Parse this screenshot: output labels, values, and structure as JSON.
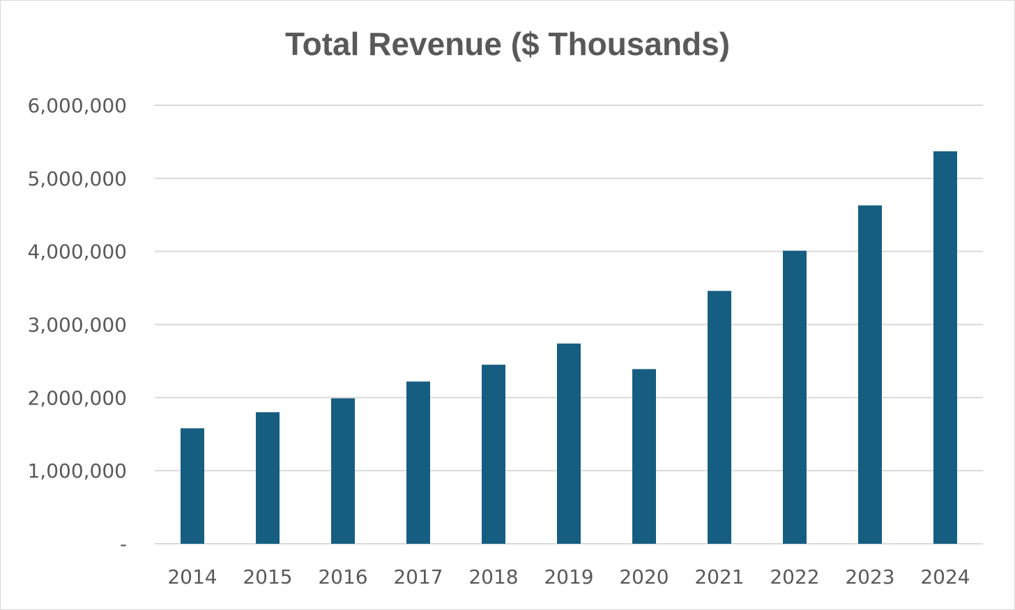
{
  "chart_data": {
    "type": "bar",
    "title": "Total Revenue ($ Thousands)",
    "xlabel": "",
    "ylabel": "",
    "categories": [
      "2014",
      "2015",
      "2016",
      "2017",
      "2018",
      "2019",
      "2020",
      "2021",
      "2022",
      "2023",
      "2024"
    ],
    "values": [
      1580000,
      1800000,
      1990000,
      2220000,
      2450000,
      2740000,
      2390000,
      3460000,
      4010000,
      4630000,
      5370000
    ],
    "ylim": [
      0,
      6000000
    ],
    "y_ticks": [
      {
        "value": 0,
        "label": "-"
      },
      {
        "value": 1000000,
        "label": "1,000,000"
      },
      {
        "value": 2000000,
        "label": "2,000,000"
      },
      {
        "value": 3000000,
        "label": "3,000,000"
      },
      {
        "value": 4000000,
        "label": "4,000,000"
      },
      {
        "value": 5000000,
        "label": "5,000,000"
      },
      {
        "value": 6000000,
        "label": "6,000,000"
      }
    ],
    "grid": true,
    "legend": "none",
    "colors": {
      "bar": "#165e81",
      "grid": "#d9d9d9",
      "text": "#595959"
    }
  }
}
